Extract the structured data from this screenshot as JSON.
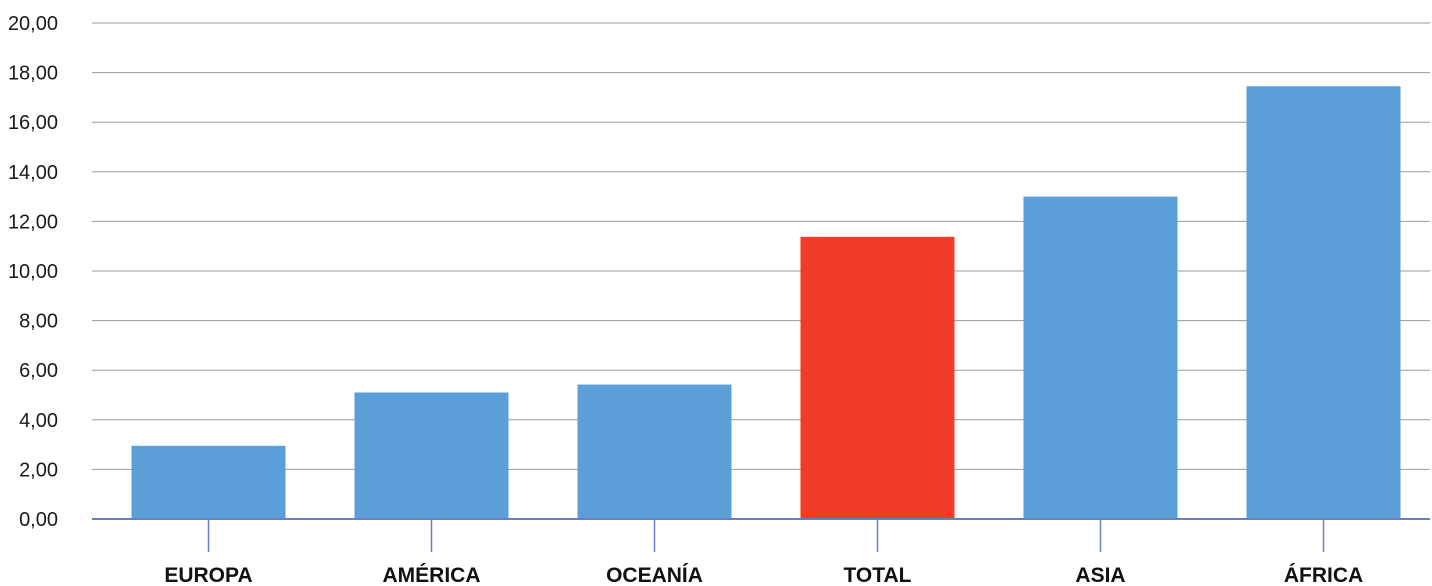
{
  "chart_data": {
    "type": "bar",
    "categories": [
      "EUROPA",
      "AMÉRICA",
      "OCEANÍA",
      "TOTAL",
      "ASIA",
      "ÁFRICA"
    ],
    "values": [
      2.95,
      5.1,
      5.42,
      11.38,
      13.0,
      17.45
    ],
    "bar_colors": [
      "#5b9fd9",
      "#5b9fd9",
      "#5b9fd9",
      "#ef3d2a",
      "#5b9fd9",
      "#5b9fd9"
    ],
    "ylim": [
      0,
      20
    ],
    "y_ticks": [
      0,
      2,
      4,
      6,
      8,
      10,
      12,
      14,
      16,
      18,
      20
    ],
    "y_tick_labels": [
      "0,00",
      "2,00",
      "4,00",
      "6,00",
      "8,00",
      "10,00",
      "12,00",
      "14,00",
      "16,00",
      "18,00",
      "20,00"
    ],
    "grid": true,
    "gridline_color": "#9a9a9a",
    "axis_color": "#6a7fc0",
    "title": "",
    "xlabel": "",
    "ylabel": ""
  }
}
